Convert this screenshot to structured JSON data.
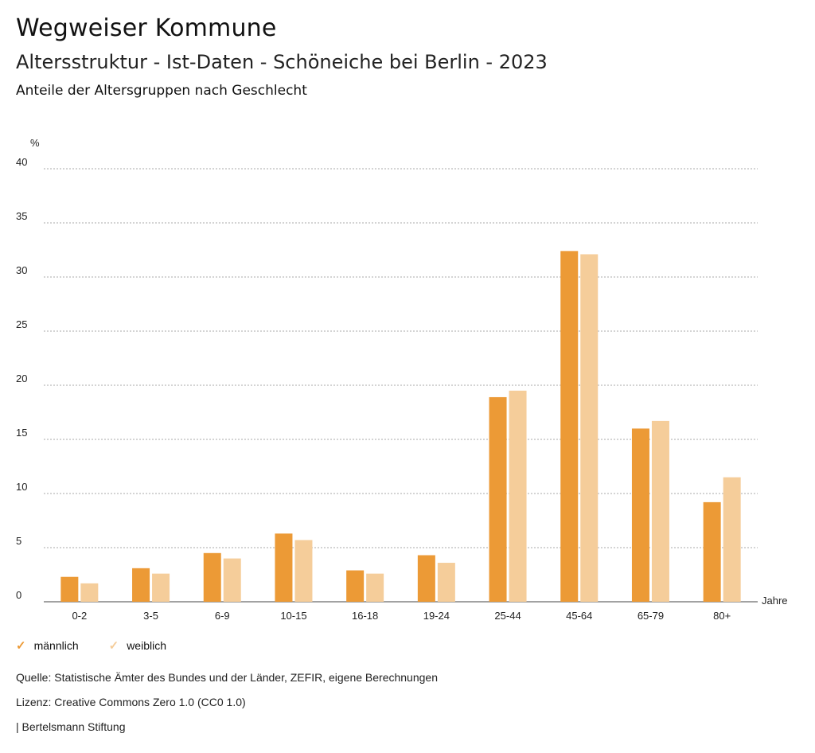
{
  "header": {
    "title": "Wegweiser Kommune",
    "subtitle": "Altersstruktur - Ist-Daten - Schöneiche bei Berlin - 2023",
    "chart_heading": "Anteile der Altersgruppen nach Geschlecht"
  },
  "chart_data": {
    "type": "bar",
    "ylabel": "%",
    "xlabel": "Jahre",
    "ylim": [
      0,
      40
    ],
    "yticks": [
      0,
      5,
      10,
      15,
      20,
      25,
      30,
      35,
      40
    ],
    "grid": true,
    "categories": [
      "0-2",
      "3-5",
      "6-9",
      "10-15",
      "16-18",
      "19-24",
      "25-44",
      "45-64",
      "65-79",
      "80+"
    ],
    "series": [
      {
        "name": "männlich",
        "color": "#ec9a36",
        "values": [
          2.3,
          3.1,
          4.5,
          6.3,
          2.9,
          4.3,
          18.9,
          32.4,
          16.0,
          9.2
        ]
      },
      {
        "name": "weiblich",
        "color": "#f5cd9a",
        "values": [
          1.7,
          2.6,
          4.0,
          5.7,
          2.6,
          3.6,
          19.5,
          32.1,
          16.7,
          11.5
        ]
      }
    ],
    "legend_position": "bottom-left"
  },
  "legend": {
    "items": [
      {
        "label": "männlich",
        "color": "#ec9a36",
        "icon": "check-icon"
      },
      {
        "label": "weiblich",
        "color": "#f5cd9a",
        "icon": "check-icon"
      }
    ]
  },
  "footer": {
    "source": "Quelle: Statistische Ämter des Bundes und der Länder, ZEFIR, eigene Berechnungen",
    "license": "Lizenz: Creative Commons Zero 1.0 (CC0 1.0)",
    "publisher": "| Bertelsmann Stiftung"
  }
}
